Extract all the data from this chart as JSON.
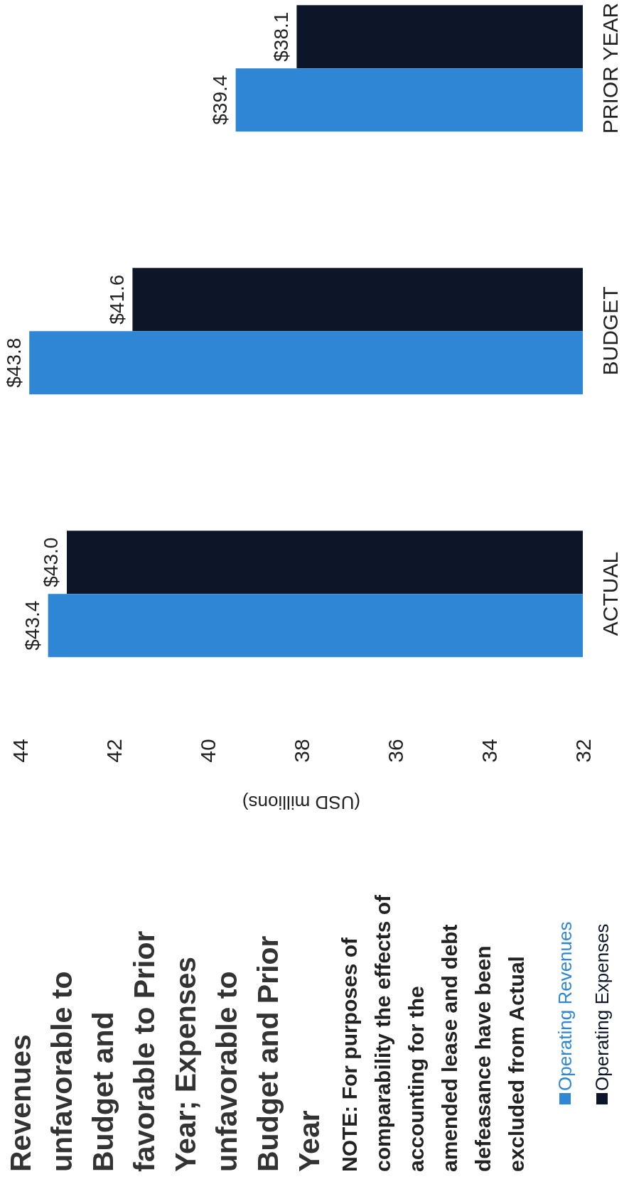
{
  "chart_data": {
    "type": "bar",
    "orientation": "horizontal",
    "title": "Revenues unfavorable to Budget and favorable to Prior Year; Expenses unfavorable to Budget and Prior Year",
    "annotations": [
      "NOTE: For purposes of comparability the effects of accounting for the amended lease and debt defeasance have been excluded from Actual"
    ],
    "xlabel": "(USD millions)",
    "categories": [
      "PRIOR YEAR",
      "BUDGET",
      "ACTUAL"
    ],
    "series": [
      {
        "name": "Operating Revenues",
        "color": "#2e86d4",
        "values": [
          39.4,
          43.8,
          43.4
        ],
        "value_labels": [
          "$39.4",
          "$43.8",
          "$43.4"
        ]
      },
      {
        "name": "Operating Expenses",
        "color": "#0c1628",
        "values": [
          38.1,
          41.6,
          43.0
        ],
        "value_labels": [
          "$38.1",
          "$41.6",
          "$43.0"
        ]
      }
    ],
    "xlim": [
      44,
      32
    ],
    "xticks": [
      44,
      42,
      40,
      38,
      36,
      34,
      32
    ],
    "legend": "bottom"
  }
}
